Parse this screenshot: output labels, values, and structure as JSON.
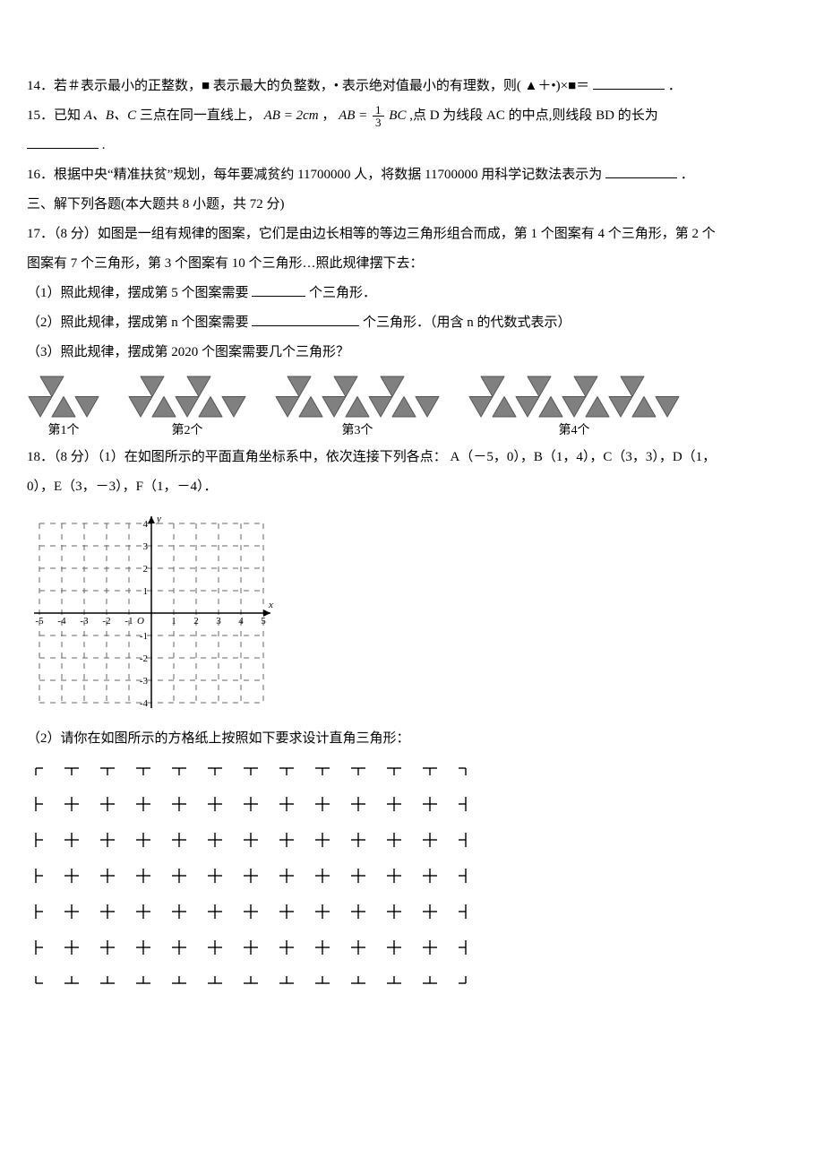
{
  "q14": {
    "text_a": "14．若＃表示最小的正整数，■ 表示最大的负整数，• 表示绝对值最小的有理数，则( ▲＋•)×■＝",
    "text_b": "．"
  },
  "q15": {
    "prefix": "15．已知 ",
    "pts": "A、B、C",
    "mid1": " 三点在同一直线上，",
    "ab_eq": "AB = 2cm",
    "comma": " ，",
    "ab2": "AB = ",
    "frac_num": "1",
    "frac_den": "3",
    "bc": "BC",
    "mid2": " ,点 D 为线段 AC 的中点,则线段 BD 的长为",
    "end": "."
  },
  "q16": {
    "text_a": "16．根据中央“精准扶贫”规划，每年要减贫约 11700000 人，将数据 11700000 用科学记数法表示为",
    "text_b": "．"
  },
  "section3": "三、解下列各题(本大题共 8 小题，共 72 分)",
  "q17": {
    "line1": "17．（8 分）如图是一组有规律的图案，它们是由边长相等的等边三角形组合而成，第 1 个图案有 4 个三角形，第 2 个",
    "line2": "图案有 7 个三角形，第 3 个图案有 10 个三角形…照此规律摆下去：",
    "p1a": "（1）照此规律，摆成第 5 个图案需要",
    "p1b": "个三角形．",
    "p2a": "（2）照此规律，摆成第 n 个图案需要",
    "p2b": "个三角形．（用含 n 的代数式表示）",
    "p3": "（3）照此规律，摆成第 2020 个图案需要几个三角形？"
  },
  "patterns": {
    "labels": [
      "第1个",
      "第2个",
      "第3个",
      "第4个"
    ],
    "units": [
      1,
      2,
      3,
      4
    ],
    "tri_side": 26,
    "fill": "#808080",
    "stroke": "#555555",
    "stroke_width": 1
  },
  "q18": {
    "line1": "18．（8 分）（1）在如图所示的平面直角坐标系中，依次连接下列各点： A（－5，0），B（1，4），C（3，3），D（1，",
    "line2": "0），E（3，－3），F（1，－4）．",
    "p2": "（2）请你在如图所示的方格纸上按照如下要求设计直角三角形："
  },
  "coordgrid": {
    "cell": 25,
    "xmin": -5,
    "xmax": 5,
    "ymin": -4,
    "ymax": 4,
    "axis_color": "#000000",
    "grid_color": "#666666",
    "dash": "6 6",
    "font_size": 11,
    "xlabel": "x",
    "ylabel": "y",
    "origin": "O"
  },
  "dotgrid": {
    "cols": 13,
    "rows": 7,
    "cell": 40,
    "tick": 8,
    "stroke": "#000000",
    "stroke_width": 1.4
  }
}
